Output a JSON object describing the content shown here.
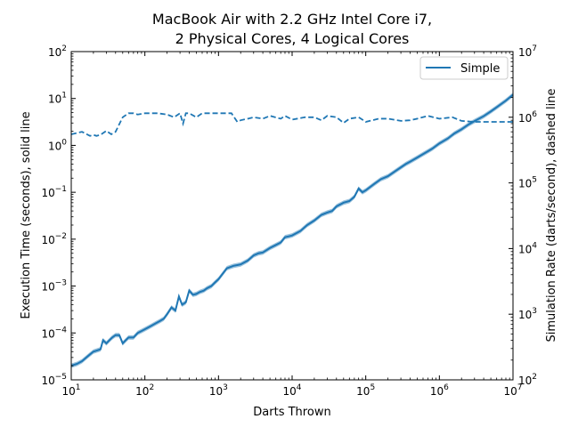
{
  "chart_data": {
    "type": "line",
    "title_line1": "MacBook Air with 2.2 GHz Intel Core i7,",
    "title_line2": "2 Physical Cores, 4 Logical Cores",
    "xlabel": "Darts Thrown",
    "ylabel_left": "Execution Time (seconds), solid line",
    "ylabel_right": "Simulation Rate (darts/second), dashed line",
    "xscale": "log",
    "yscale_left": "log",
    "yscale_right": "log",
    "xlim": [
      10,
      10000000
    ],
    "ylim_left": [
      1e-05,
      100
    ],
    "ylim_right": [
      100,
      10000000
    ],
    "x_ticks": [
      {
        "value": 10,
        "base": "10",
        "exp": "1"
      },
      {
        "value": 100,
        "base": "10",
        "exp": "2"
      },
      {
        "value": 1000,
        "base": "10",
        "exp": "3"
      },
      {
        "value": 10000,
        "base": "10",
        "exp": "4"
      },
      {
        "value": 100000,
        "base": "10",
        "exp": "5"
      },
      {
        "value": 1000000,
        "base": "10",
        "exp": "6"
      },
      {
        "value": 10000000,
        "base": "10",
        "exp": "7"
      }
    ],
    "y_left_ticks": [
      {
        "value": 1e-05,
        "base": "10",
        "exp": "−5"
      },
      {
        "value": 0.0001,
        "base": "10",
        "exp": "−4"
      },
      {
        "value": 0.001,
        "base": "10",
        "exp": "−3"
      },
      {
        "value": 0.01,
        "base": "10",
        "exp": "−2"
      },
      {
        "value": 0.1,
        "base": "10",
        "exp": "−1"
      },
      {
        "value": 1,
        "base": "10",
        "exp": "0"
      },
      {
        "value": 10,
        "base": "10",
        "exp": "1"
      },
      {
        "value": 100,
        "base": "10",
        "exp": "2"
      }
    ],
    "y_right_ticks": [
      {
        "value": 100,
        "base": "10",
        "exp": "2"
      },
      {
        "value": 1000,
        "base": "10",
        "exp": "3"
      },
      {
        "value": 10000,
        "base": "10",
        "exp": "4"
      },
      {
        "value": 100000,
        "base": "10",
        "exp": "5"
      },
      {
        "value": 1000000,
        "base": "10",
        "exp": "6"
      },
      {
        "value": 10000000,
        "base": "10",
        "exp": "7"
      }
    ],
    "legend": {
      "placement": "top-right",
      "entries": [
        "Simple"
      ]
    },
    "grid": false,
    "color": "#1f77b4",
    "series": [
      {
        "name": "Simple",
        "style": "solid",
        "axis": "left",
        "x": [
          10,
          12,
          14,
          16,
          18,
          20,
          22,
          25,
          27,
          30,
          33,
          36,
          40,
          45,
          50,
          55,
          60,
          70,
          80,
          90,
          100,
          120,
          140,
          160,
          180,
          200,
          230,
          260,
          290,
          320,
          360,
          400,
          450,
          500,
          560,
          630,
          700,
          800,
          900,
          1000,
          1300,
          1600,
          1800,
          2000,
          2500,
          3000,
          3500,
          4000,
          5000,
          6000,
          7000,
          8000,
          9000,
          10000,
          13000,
          16000,
          20000,
          25000,
          30000,
          35000,
          40000,
          50000,
          60000,
          70000,
          80000,
          90000,
          100000,
          130000,
          160000,
          200000,
          250000,
          300000,
          350000,
          400000,
          500000,
          600000,
          700000,
          800000,
          1000000,
          1300000,
          1600000,
          2000000,
          2500000,
          3000000,
          4000000,
          5000000,
          6000000,
          8000000,
          10000000
        ],
        "y": [
          2e-05,
          2.2e-05,
          2.5e-05,
          3e-05,
          3.5e-05,
          4e-05,
          4.2e-05,
          4.5e-05,
          7e-05,
          6e-05,
          7e-05,
          8e-05,
          9e-05,
          9e-05,
          6e-05,
          7e-05,
          8e-05,
          8e-05,
          0.0001,
          0.00011,
          0.00012,
          0.00014,
          0.00016,
          0.00018,
          0.0002,
          0.00025,
          0.00035,
          0.0003,
          0.0006,
          0.0004,
          0.00045,
          0.0008,
          0.00065,
          0.00068,
          0.00075,
          0.0008,
          0.0009,
          0.001,
          0.0012,
          0.0014,
          0.0024,
          0.0027,
          0.0028,
          0.0029,
          0.0035,
          0.0045,
          0.005,
          0.0052,
          0.0065,
          0.0075,
          0.0085,
          0.011,
          0.0115,
          0.012,
          0.015,
          0.02,
          0.025,
          0.033,
          0.037,
          0.04,
          0.05,
          0.06,
          0.065,
          0.08,
          0.12,
          0.1,
          0.11,
          0.15,
          0.19,
          0.22,
          0.28,
          0.34,
          0.4,
          0.45,
          0.55,
          0.65,
          0.75,
          0.85,
          1.1,
          1.4,
          1.8,
          2.2,
          2.8,
          3.3,
          4.2,
          5.3,
          6.5,
          9,
          12
        ]
      },
      {
        "name": "",
        "style": "dashed",
        "axis": "right",
        "x": [
          10,
          14,
          18,
          20,
          22,
          25,
          30,
          35,
          40,
          50,
          60,
          70,
          80,
          100,
          150,
          200,
          250,
          300,
          330,
          360,
          400,
          500,
          600,
          1000,
          1500,
          1800,
          2000,
          2500,
          3000,
          4000,
          5000,
          7000,
          8000,
          10000,
          15000,
          20000,
          25000,
          30000,
          40000,
          50000,
          60000,
          80000,
          100000,
          150000,
          200000,
          300000,
          400000,
          500000,
          700000,
          1000000,
          1500000,
          2000000,
          3000000,
          5000000,
          10000000
        ],
        "y": [
          550000,
          600000,
          520000,
          540000,
          520000,
          540000,
          620000,
          550000,
          600000,
          1000000,
          1150000,
          1150000,
          1100000,
          1150000,
          1150000,
          1100000,
          1000000,
          1150000,
          800000,
          1150000,
          1150000,
          1000000,
          1150000,
          1150000,
          1150000,
          850000,
          900000,
          950000,
          1000000,
          950000,
          1050000,
          950000,
          1050000,
          920000,
          1000000,
          1000000,
          900000,
          1050000,
          1000000,
          820000,
          950000,
          1000000,
          850000,
          950000,
          950000,
          880000,
          900000,
          950000,
          1050000,
          950000,
          1000000,
          880000,
          850000,
          850000,
          850000
        ]
      }
    ]
  }
}
